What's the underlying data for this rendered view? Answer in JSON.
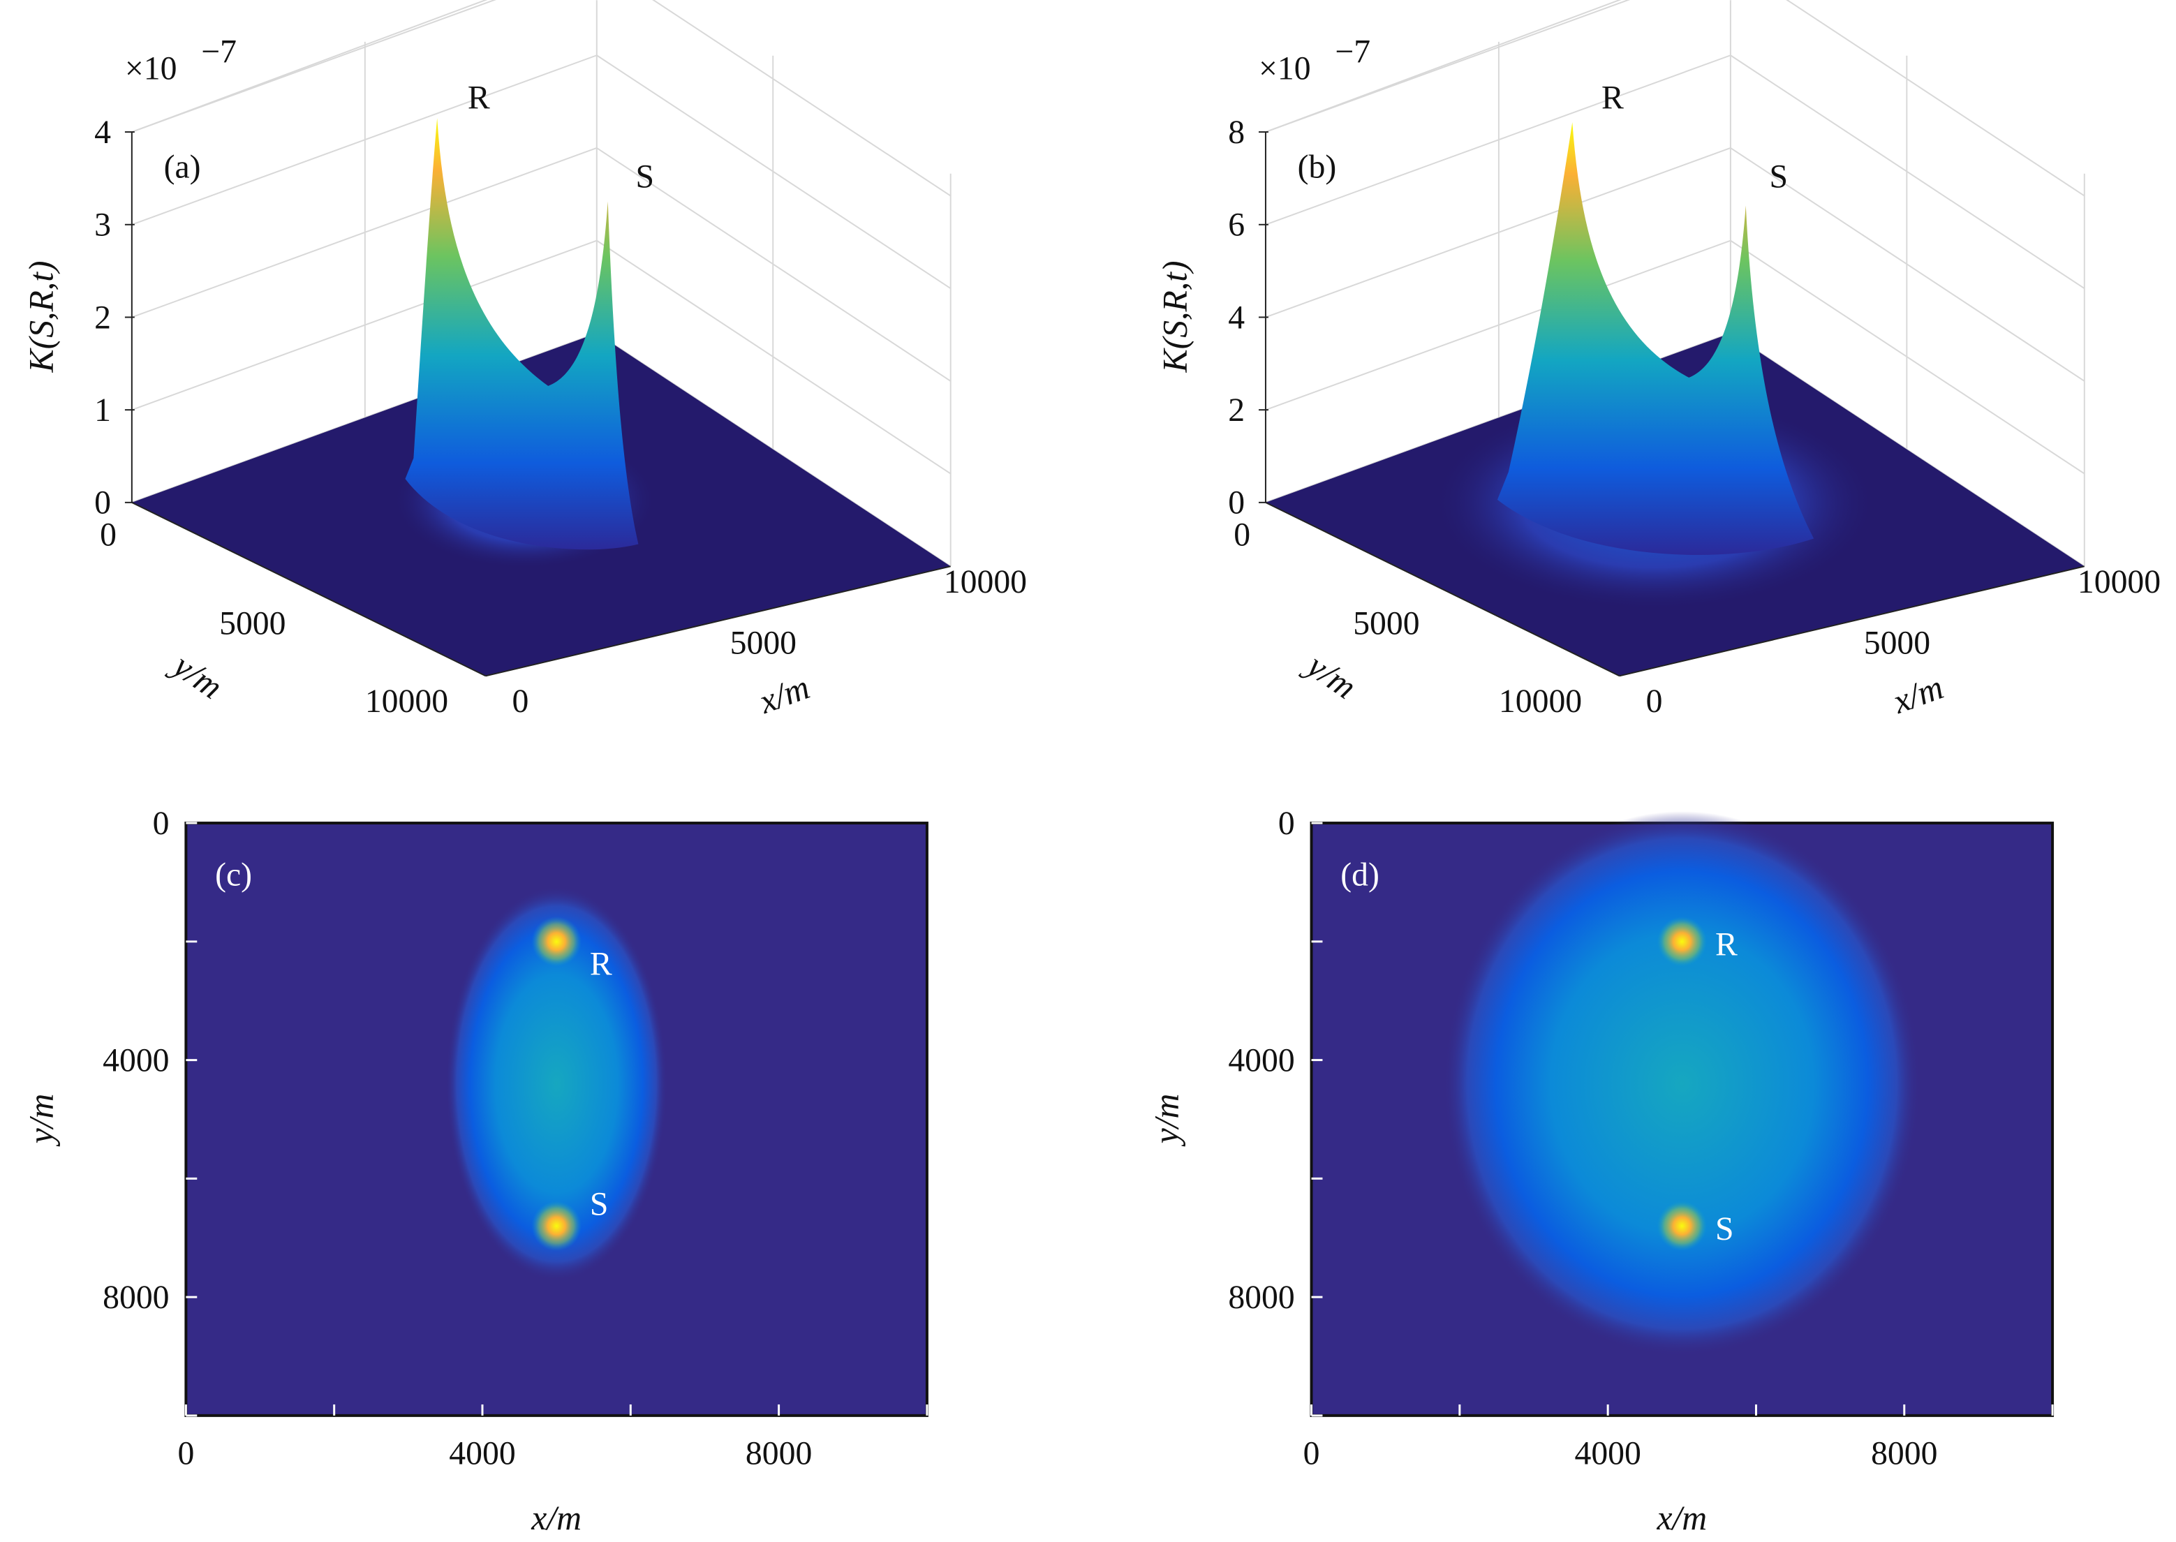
{
  "chart_data": [
    {
      "panel": "(a)",
      "type": "surface3d",
      "zlabel": "K(S,R,t)",
      "xlabel": "x/m",
      "ylabel": "y/m",
      "z_exponent": "×10",
      "z_exponent_power": "−7",
      "xlim": [
        0,
        10000
      ],
      "ylim": [
        0,
        10000
      ],
      "zlim": [
        0,
        4
      ],
      "x_ticks": [
        "0",
        "5000",
        "10000"
      ],
      "y_ticks": [
        "0",
        "5000",
        "10000"
      ],
      "z_ticks": [
        "0",
        "1",
        "2",
        "3",
        "4"
      ],
      "peaks": [
        {
          "label": "R",
          "x": 5000,
          "y": 2000,
          "z": 4.0
        },
        {
          "label": "S",
          "x": 5000,
          "y": 6800,
          "z": 3.2
        }
      ],
      "saddle_z": 1.2,
      "colormap": "parula",
      "grid": true
    },
    {
      "panel": "(b)",
      "type": "surface3d",
      "zlabel": "K(S,R,t)",
      "xlabel": "x/m",
      "ylabel": "y/m",
      "z_exponent": "×10",
      "z_exponent_power": "−7",
      "xlim": [
        0,
        10000
      ],
      "ylim": [
        0,
        10000
      ],
      "zlim": [
        0,
        8
      ],
      "x_ticks": [
        "0",
        "5000",
        "10000"
      ],
      "y_ticks": [
        "0",
        "5000",
        "10000"
      ],
      "z_ticks": [
        "0",
        "2",
        "4",
        "6",
        "8"
      ],
      "peaks": [
        {
          "label": "R",
          "x": 5000,
          "y": 2000,
          "z": 8.0
        },
        {
          "label": "S",
          "x": 5000,
          "y": 6800,
          "z": 6.3
        }
      ],
      "saddle_z": 2.6,
      "colormap": "parula",
      "grid": true
    },
    {
      "panel": "(c)",
      "type": "heatmap",
      "xlabel": "x/m",
      "ylabel": "y/m",
      "xlim": [
        0,
        10000
      ],
      "ylim": [
        0,
        10000
      ],
      "y_reversed": true,
      "x_ticks": [
        "0",
        "4000",
        "8000"
      ],
      "y_ticks": [
        "0",
        "4000",
        "8000"
      ],
      "points": [
        {
          "label": "R",
          "x": 5000,
          "y": 2000
        },
        {
          "label": "S",
          "x": 5000,
          "y": 6800
        }
      ],
      "ellipse_half_width": 1300,
      "ellipse_half_height": 2900,
      "colormap": "parula"
    },
    {
      "panel": "(d)",
      "type": "heatmap",
      "xlabel": "x/m",
      "ylabel": "y/m",
      "xlim": [
        0,
        10000
      ],
      "ylim": [
        0,
        10000
      ],
      "y_reversed": true,
      "x_ticks": [
        "0",
        "4000",
        "8000"
      ],
      "y_ticks": [
        "0",
        "4000",
        "8000"
      ],
      "points": [
        {
          "label": "R",
          "x": 5000,
          "y": 2000
        },
        {
          "label": "S",
          "x": 5000,
          "y": 6800
        }
      ],
      "ellipse_half_width": 2800,
      "ellipse_half_height": 4000,
      "colormap": "parula"
    }
  ],
  "colors": {
    "floor": "#241a6c",
    "background": "#352a87",
    "low": "#0f5cdd",
    "mid": "#13a6c2",
    "high": "#f9fb0e"
  }
}
